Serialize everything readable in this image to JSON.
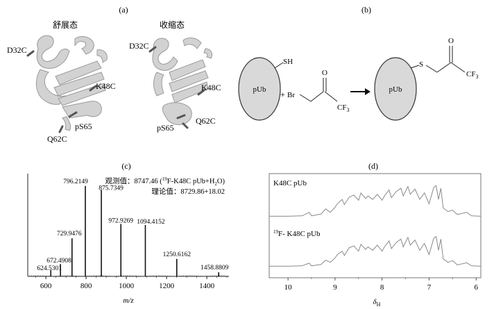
{
  "panels": {
    "a": {
      "label": "(a)",
      "state_left": "舒展态",
      "state_right": "收缩态",
      "residues_left": [
        "D32C",
        "K48C",
        "pS65",
        "Q62C"
      ],
      "residues_right": [
        "D32C",
        "K48C",
        "Q62C",
        "pS65"
      ]
    },
    "b": {
      "label": "(b)",
      "protein": "pUb",
      "thiol": "SH",
      "plus": "+",
      "br": "Br",
      "o": "O",
      "cf3_base": "CF",
      "cf3_sub": "3",
      "s": "S",
      "arrow": "→"
    },
    "c": {
      "label": "(c)",
      "observed_label": "观测值：",
      "observed_value": "8747.46 (",
      "observed_sup": "19",
      "observed_tail": "F-K48C pUb+H",
      "observed_sub": "2",
      "observed_end": "O)",
      "theory_label": "理论值：",
      "theory_value": "8729.86+18.02",
      "xlabel": "m/z"
    },
    "d": {
      "label": "(d)",
      "trace1": "K48C pUb",
      "trace2_sup": "19",
      "trace2": "F- K48C pUb",
      "xlabel_base": "δ",
      "xlabel_sub": "H"
    }
  },
  "chart_data": [
    {
      "type": "bar",
      "title": "",
      "xlabel": "m/z",
      "ylabel": "",
      "xlim": [
        510,
        1510
      ],
      "ylim": [
        0,
        100
      ],
      "xticks": [
        600,
        800,
        1000,
        1200,
        1400
      ],
      "peaks": [
        {
          "mz": 624.5301,
          "height": 6,
          "label": "624.5301"
        },
        {
          "mz": 672.4908,
          "height": 12,
          "label": "672.4908"
        },
        {
          "mz": 729.9476,
          "height": 37,
          "label": "729.9476"
        },
        {
          "mz": 796.2149,
          "height": 88,
          "label": "796.2149"
        },
        {
          "mz": 875.7349,
          "height": 84,
          "label": "875.7349"
        },
        {
          "mz": 972.9269,
          "height": 51,
          "label": "972.9269"
        },
        {
          "mz": 1094.4152,
          "height": 50,
          "label": "1094.4152"
        },
        {
          "mz": 1250.6162,
          "height": 17,
          "label": "1250.6162"
        },
        {
          "mz": 1458.8809,
          "height": 4,
          "label": "1458.8809"
        }
      ]
    },
    {
      "type": "line",
      "title": "",
      "xlabel": "δH",
      "ylabel": "",
      "xlim": [
        10.4,
        5.9
      ],
      "xticks": [
        10,
        9,
        8,
        7,
        6
      ],
      "x_reversed": true,
      "series": [
        {
          "name": "K48C pUb",
          "lines": [
            [
              10.4,
              1
            ],
            [
              10.0,
              1
            ],
            [
              9.7,
              2
            ],
            [
              9.55,
              10
            ],
            [
              9.5,
              2
            ],
            [
              9.3,
              6
            ],
            [
              9.2,
              18
            ],
            [
              9.1,
              10
            ],
            [
              9.0,
              22
            ],
            [
              8.95,
              30
            ],
            [
              8.85,
              40
            ],
            [
              8.8,
              28
            ],
            [
              8.7,
              45
            ],
            [
              8.6,
              50
            ],
            [
              8.5,
              38
            ],
            [
              8.45,
              55
            ],
            [
              8.35,
              42
            ],
            [
              8.3,
              48
            ],
            [
              8.2,
              40
            ],
            [
              8.1,
              52
            ],
            [
              8.0,
              38
            ],
            [
              7.95,
              48
            ],
            [
              7.85,
              62
            ],
            [
              7.8,
              44
            ],
            [
              7.7,
              58
            ],
            [
              7.6,
              66
            ],
            [
              7.55,
              48
            ],
            [
              7.45,
              70
            ],
            [
              7.4,
              52
            ],
            [
              7.3,
              64
            ],
            [
              7.2,
              40
            ],
            [
              7.1,
              55
            ],
            [
              7.0,
              30
            ],
            [
              6.9,
              68
            ],
            [
              6.85,
              72
            ],
            [
              6.8,
              40
            ],
            [
              6.75,
              66
            ],
            [
              6.7,
              20
            ],
            [
              6.6,
              12
            ],
            [
              6.5,
              15
            ],
            [
              6.4,
              5
            ],
            [
              6.2,
              10
            ],
            [
              6.1,
              2
            ],
            [
              5.9,
              1
            ]
          ]
        },
        {
          "name": "19F- K48C pUb",
          "lines": [
            [
              10.4,
              1
            ],
            [
              10.0,
              1
            ],
            [
              9.7,
              2
            ],
            [
              9.55,
              8
            ],
            [
              9.5,
              2
            ],
            [
              9.3,
              5
            ],
            [
              9.2,
              15
            ],
            [
              9.1,
              10
            ],
            [
              9.0,
              20
            ],
            [
              8.95,
              28
            ],
            [
              8.85,
              36
            ],
            [
              8.8,
              26
            ],
            [
              8.7,
              44
            ],
            [
              8.6,
              48
            ],
            [
              8.5,
              36
            ],
            [
              8.45,
              52
            ],
            [
              8.35,
              40
            ],
            [
              8.3,
              46
            ],
            [
              8.2,
              38
            ],
            [
              8.1,
              50
            ],
            [
              8.0,
              36
            ],
            [
              7.95,
              46
            ],
            [
              7.85,
              60
            ],
            [
              7.8,
              42
            ],
            [
              7.7,
              56
            ],
            [
              7.6,
              64
            ],
            [
              7.55,
              46
            ],
            [
              7.45,
              68
            ],
            [
              7.4,
              50
            ],
            [
              7.3,
              62
            ],
            [
              7.2,
              38
            ],
            [
              7.1,
              54
            ],
            [
              7.0,
              28
            ],
            [
              6.9,
              66
            ],
            [
              6.85,
              70
            ],
            [
              6.8,
              38
            ],
            [
              6.75,
              64
            ],
            [
              6.7,
              18
            ],
            [
              6.6,
              10
            ],
            [
              6.5,
              14
            ],
            [
              6.4,
              4
            ],
            [
              6.2,
              9
            ],
            [
              6.1,
              2
            ],
            [
              5.9,
              1
            ]
          ]
        }
      ]
    }
  ]
}
